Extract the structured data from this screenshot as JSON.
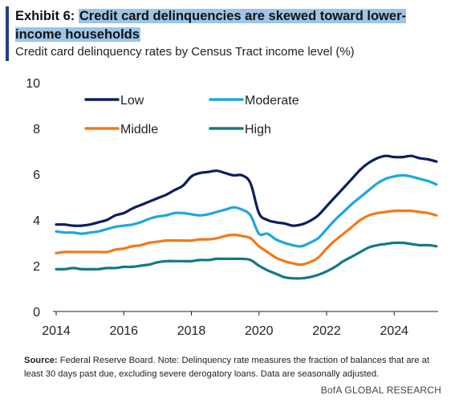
{
  "header": {
    "exhibit_label": "Exhibit 6:",
    "title": "Credit card delinquencies are skewed toward lower-income households",
    "subtitle": "Credit card delinquency rates by Census Tract income level (%)"
  },
  "footer": {
    "source_label": "Source:",
    "source_text": "Federal Reserve Board. Note: Delinquency rate measures the fraction of balances that are at least 30 days past due, excluding severe derogatory loans. Data are seasonally adjusted.",
    "brand": "BofA GLOBAL RESEARCH"
  },
  "chart_data": {
    "type": "line",
    "xlabel": "",
    "ylabel": "",
    "xlim": [
      2014,
      2025.3
    ],
    "ylim": [
      0,
      10
    ],
    "x_ticks": [
      2014,
      2016,
      2018,
      2020,
      2022,
      2024
    ],
    "y_ticks": [
      0,
      2,
      4,
      6,
      8,
      10
    ],
    "grid": false,
    "legend_position": "top-left",
    "x": [
      2014.0,
      2014.25,
      2014.5,
      2014.75,
      2015.0,
      2015.25,
      2015.5,
      2015.75,
      2016.0,
      2016.25,
      2016.5,
      2016.75,
      2017.0,
      2017.25,
      2017.5,
      2017.75,
      2018.0,
      2018.25,
      2018.5,
      2018.75,
      2019.0,
      2019.25,
      2019.5,
      2019.75,
      2020.0,
      2020.25,
      2020.5,
      2020.75,
      2021.0,
      2021.25,
      2021.5,
      2021.75,
      2022.0,
      2022.25,
      2022.5,
      2022.75,
      2023.0,
      2023.25,
      2023.5,
      2023.75,
      2024.0,
      2024.25,
      2024.5,
      2024.75,
      2025.0,
      2025.25
    ],
    "series": [
      {
        "name": "Low",
        "color": "#0a1f5c",
        "values": [
          3.8,
          3.8,
          3.75,
          3.75,
          3.8,
          3.9,
          4.0,
          4.2,
          4.3,
          4.5,
          4.65,
          4.8,
          4.95,
          5.1,
          5.3,
          5.5,
          5.9,
          6.05,
          6.1,
          6.15,
          6.05,
          5.95,
          5.95,
          5.6,
          4.3,
          4.0,
          3.9,
          3.85,
          3.75,
          3.8,
          3.95,
          4.2,
          4.6,
          5.0,
          5.4,
          5.8,
          6.2,
          6.5,
          6.7,
          6.8,
          6.75,
          6.75,
          6.8,
          6.7,
          6.65,
          6.55
        ]
      },
      {
        "name": "Moderate",
        "color": "#1ea6e0",
        "values": [
          3.5,
          3.45,
          3.45,
          3.4,
          3.45,
          3.5,
          3.6,
          3.7,
          3.75,
          3.8,
          3.9,
          4.05,
          4.15,
          4.2,
          4.3,
          4.3,
          4.25,
          4.2,
          4.25,
          4.35,
          4.45,
          4.55,
          4.45,
          4.2,
          3.4,
          3.4,
          3.15,
          3.0,
          2.9,
          2.85,
          3.0,
          3.2,
          3.6,
          4.0,
          4.35,
          4.7,
          5.0,
          5.3,
          5.6,
          5.8,
          5.9,
          5.95,
          5.9,
          5.8,
          5.7,
          5.55
        ]
      },
      {
        "name": "Middle",
        "color": "#f07a1a",
        "values": [
          2.55,
          2.6,
          2.6,
          2.6,
          2.6,
          2.6,
          2.6,
          2.7,
          2.75,
          2.85,
          2.9,
          3.0,
          3.05,
          3.1,
          3.1,
          3.1,
          3.1,
          3.15,
          3.15,
          3.2,
          3.3,
          3.35,
          3.3,
          3.2,
          2.85,
          2.6,
          2.35,
          2.2,
          2.1,
          2.05,
          2.15,
          2.35,
          2.75,
          3.1,
          3.4,
          3.7,
          4.0,
          4.2,
          4.3,
          4.35,
          4.4,
          4.4,
          4.4,
          4.35,
          4.3,
          4.2
        ]
      },
      {
        "name": "High",
        "color": "#137a85",
        "values": [
          1.85,
          1.85,
          1.9,
          1.85,
          1.85,
          1.85,
          1.9,
          1.9,
          1.95,
          1.95,
          2.0,
          2.05,
          2.15,
          2.2,
          2.2,
          2.2,
          2.2,
          2.25,
          2.25,
          2.3,
          2.3,
          2.3,
          2.3,
          2.25,
          2.0,
          1.8,
          1.65,
          1.5,
          1.45,
          1.45,
          1.5,
          1.6,
          1.75,
          1.95,
          2.2,
          2.4,
          2.6,
          2.8,
          2.9,
          2.95,
          3.0,
          3.0,
          2.95,
          2.9,
          2.9,
          2.85
        ]
      }
    ]
  }
}
